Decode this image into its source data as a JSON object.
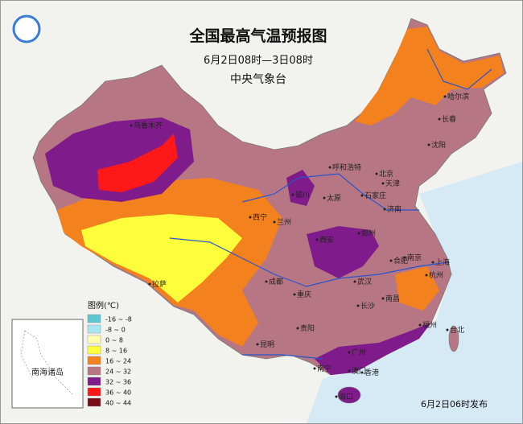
{
  "title": "全国最高气温预报图",
  "subtitle": "6月2日08时—3日08时",
  "agency": "中央气象台",
  "legend": {
    "title": "图例(℃)",
    "items": [
      {
        "label": "-16 ~ -8",
        "color": "#5bc8d0"
      },
      {
        "label": "-8 ~ 0",
        "color": "#a8e4f2"
      },
      {
        "label": "0 ~ 8",
        "color": "#ffffb0"
      },
      {
        "label": "8 ~ 16",
        "color": "#ffff3c"
      },
      {
        "label": "16 ~ 24",
        "color": "#f3811e"
      },
      {
        "label": "24 ~ 32",
        "color": "#b77684"
      },
      {
        "label": "32 ~ 36",
        "color": "#7f1b8a"
      },
      {
        "label": "36 ~ 40",
        "color": "#ff1818"
      },
      {
        "label": "40 ~ 44",
        "color": "#7a0a18"
      }
    ]
  },
  "inset_label": "南海诸岛",
  "issued": "6月2日06时发布",
  "cities": [
    "乌鲁木齐",
    "哈尔滨",
    "长春",
    "沈阳",
    "呼和浩特",
    "北京",
    "天津",
    "银川",
    "太原",
    "石家庄",
    "济南",
    "西宁",
    "兰州",
    "西安",
    "郑州",
    "合肥",
    "南京",
    "上海",
    "拉萨",
    "成都",
    "重庆",
    "武汉",
    "杭州",
    "长沙",
    "南昌",
    "福州",
    "台北",
    "贵阳",
    "昆明",
    "南宁",
    "广州",
    "香港",
    "澳门",
    "海口"
  ]
}
